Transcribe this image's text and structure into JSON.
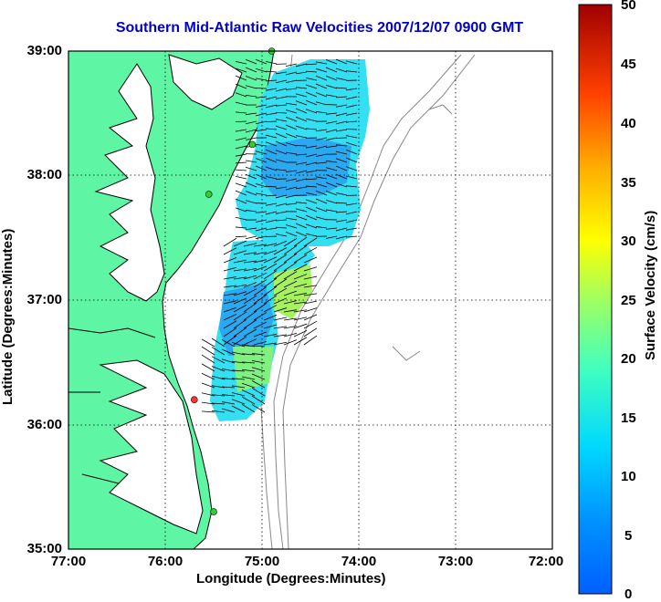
{
  "title": "Southern Mid-Atlantic Raw Velocities 2007/12/07 0900 GMT",
  "x_axis": {
    "label": "Longitude (Degrees:Minutes)",
    "ticks": [
      "77:00",
      "76:00",
      "75:00",
      "74:00",
      "73:00",
      "72:00"
    ]
  },
  "y_axis": {
    "label": "Latitude (Degrees:Minutes)",
    "ticks": [
      "39:00",
      "38:00",
      "37:00",
      "36:00",
      "35:00"
    ]
  },
  "colorbar": {
    "label": "Surface Velocity (cm/s)",
    "ticks": [
      "50",
      "45",
      "40",
      "35",
      "30",
      "25",
      "20",
      "15",
      "10",
      "5",
      "0"
    ],
    "range": [
      0,
      50
    ]
  },
  "colors": {
    "land": "#5ef5a5",
    "water": "#ffffff",
    "title": "#0000cc",
    "coastline": "#000000",
    "bathymetry": "#888888"
  },
  "map": {
    "lon_range": [
      -77,
      -72
    ],
    "lat_range": [
      35,
      39
    ],
    "grid": true,
    "stations": [
      {
        "lon": -74.9,
        "lat": 39.0,
        "color": "#33cc33"
      },
      {
        "lon": -75.1,
        "lat": 38.25,
        "color": "#33cc33"
      },
      {
        "lon": -75.55,
        "lat": 37.85,
        "color": "#33cc33"
      },
      {
        "lon": -75.7,
        "lat": 36.2,
        "color": "#ff3333"
      },
      {
        "lon": -75.5,
        "lat": 35.3,
        "color": "#33cc33"
      }
    ]
  }
}
